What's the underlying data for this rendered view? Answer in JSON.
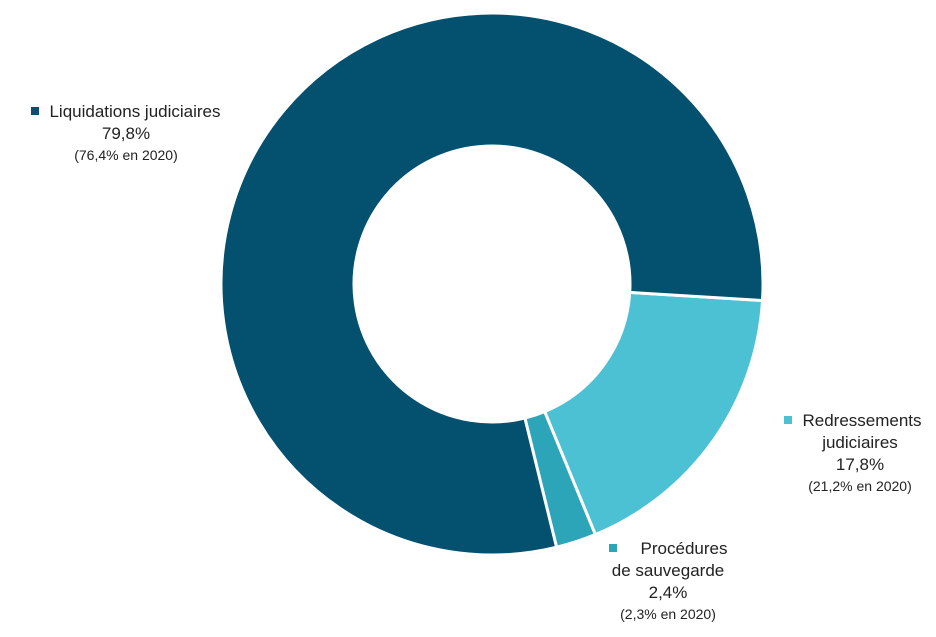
{
  "chart_data": {
    "type": "pie",
    "donut": true,
    "slices": [
      {
        "name": "Liquidations judiciaires",
        "value": 79.8,
        "value_label": "79,8%",
        "prev_label": "(76,4% en 2020)",
        "color": "#03506f",
        "name_lines": [
          "Liquidations judiciaires"
        ]
      },
      {
        "name": "Redressements judiciaires",
        "value": 17.8,
        "value_label": "17,8%",
        "prev_label": "(21,2% en 2020)",
        "color": "#4cc1d3",
        "name_lines": [
          "Redressements",
          "judiciaires"
        ]
      },
      {
        "name": "Procédures de sauvegarde",
        "value": 2.4,
        "value_label": "2,4%",
        "prev_label": "(2,3% en 2020)",
        "color": "#2ca5b8",
        "name_lines": [
          "Procédures",
          "de sauvegarde"
        ]
      }
    ]
  }
}
